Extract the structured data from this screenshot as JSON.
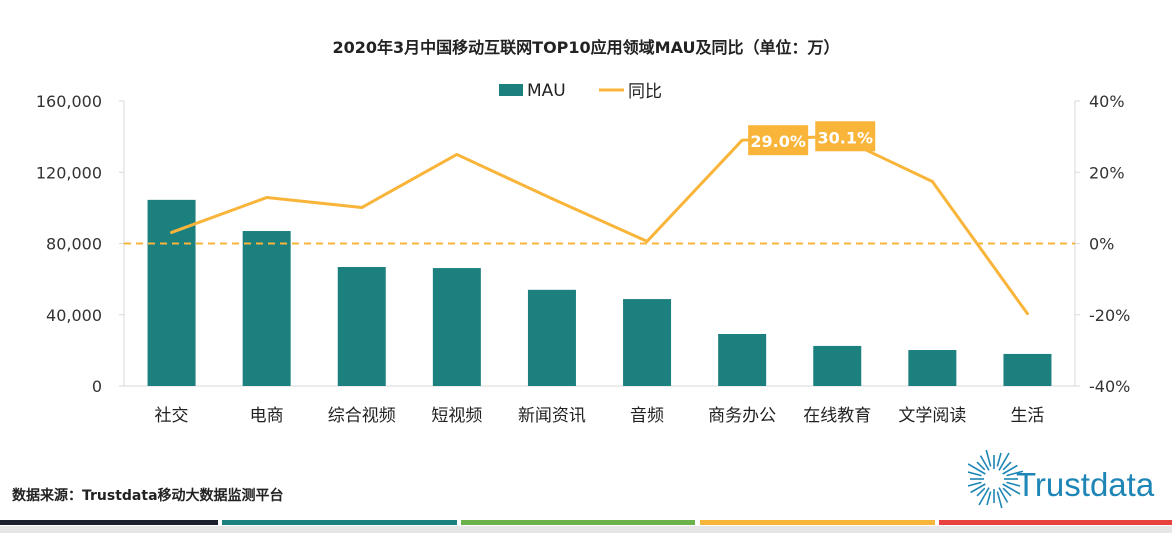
{
  "chart_data": {
    "type": "bar+line",
    "title": "2020年3月中国移动互联网TOP10应用领域MAU及同比（单位：万）",
    "categories": [
      "社交",
      "电商",
      "综合视频",
      "短视频",
      "新闻资讯",
      "音频",
      "商务办公",
      "在线教育",
      "文学阅读",
      "生活"
    ],
    "series": [
      {
        "name": "MAU",
        "type": "bar",
        "axis": "left",
        "color": "#1c807e",
        "values": [
          104500,
          87000,
          66800,
          66200,
          54000,
          48800,
          29200,
          22500,
          20200,
          18000
        ]
      },
      {
        "name": "同比",
        "type": "line",
        "axis": "right",
        "color": "#f9b43a",
        "unit": "%",
        "values": [
          3.1,
          12.9,
          10.1,
          25.0,
          12.6,
          0.6,
          29.0,
          30.1,
          17.4,
          -19.7
        ]
      }
    ],
    "data_labels": [
      {
        "category": "商务办公",
        "text": "29.0%"
      },
      {
        "category": "在线教育",
        "text": "30.1%"
      }
    ],
    "left_axis": {
      "ylim": [
        0,
        160000
      ],
      "ticks": [
        "0",
        "40,000",
        "80,000",
        "120,000",
        "160,000"
      ]
    },
    "right_axis": {
      "ylim": [
        -40,
        40
      ],
      "ticks": [
        "-40%",
        "-20%",
        "0%",
        "20%",
        "40%"
      ]
    },
    "reference_line": {
      "value": 0,
      "axis": "right",
      "style": "dashed"
    },
    "legend": {
      "position": "top",
      "entries": [
        "MAU",
        "同比"
      ]
    },
    "grid": false
  },
  "footer": {
    "source": "数据来源：Trustdata移动大数据监测平台",
    "logo_text": "Trustdata",
    "strip_colors": [
      "#1b1f2e",
      "#1c807e",
      "#6cb24a",
      "#f9b43a",
      "#e8423f"
    ]
  }
}
